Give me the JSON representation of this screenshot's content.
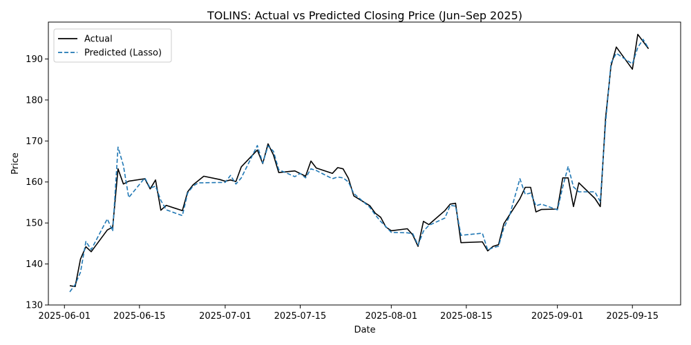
{
  "chart_data": {
    "type": "line",
    "title": "TOLINS: Actual vs Predicted Closing Price (Jun–Sep 2025)",
    "xlabel": "Date",
    "ylabel": "Price",
    "xlim": [
      "2025-05-29",
      "2025-09-24"
    ],
    "ylim": [
      130,
      199
    ],
    "x_ticks": [
      "2025-06-01",
      "2025-06-15",
      "2025-07-01",
      "2025-07-15",
      "2025-08-01",
      "2025-08-15",
      "2025-09-01",
      "2025-09-15"
    ],
    "y_ticks": [
      130,
      140,
      150,
      160,
      170,
      180,
      190
    ],
    "grid": false,
    "legend_position": "top-left",
    "series": [
      {
        "name": "Actual",
        "color": "#000000",
        "style": "solid",
        "points": [
          [
            "2025-06-02",
            134.7
          ],
          [
            "2025-06-03",
            134.5
          ],
          [
            "2025-06-04",
            141.2
          ],
          [
            "2025-06-05",
            144.2
          ],
          [
            "2025-06-06",
            143.0
          ],
          [
            "2025-06-09",
            148.3
          ],
          [
            "2025-06-10",
            149.0
          ],
          [
            "2025-06-11",
            163.2
          ],
          [
            "2025-06-12",
            159.5
          ],
          [
            "2025-06-13",
            160.2
          ],
          [
            "2025-06-16",
            160.8
          ],
          [
            "2025-06-17",
            158.3
          ],
          [
            "2025-06-18",
            160.5
          ],
          [
            "2025-06-19",
            153.1
          ],
          [
            "2025-06-20",
            154.3
          ],
          [
            "2025-06-23",
            153.0
          ],
          [
            "2025-06-24",
            157.6
          ],
          [
            "2025-06-25",
            159.3
          ],
          [
            "2025-06-27",
            161.4
          ],
          [
            "2025-06-30",
            160.6
          ],
          [
            "2025-07-01",
            160.2
          ],
          [
            "2025-07-02",
            160.5
          ],
          [
            "2025-07-03",
            160.1
          ],
          [
            "2025-07-04",
            163.7
          ],
          [
            "2025-07-07",
            167.8
          ],
          [
            "2025-07-08",
            164.5
          ],
          [
            "2025-07-09",
            169.3
          ],
          [
            "2025-07-10",
            166.6
          ],
          [
            "2025-07-11",
            162.3
          ],
          [
            "2025-07-14",
            162.7
          ],
          [
            "2025-07-16",
            161.4
          ],
          [
            "2025-07-17",
            165.1
          ],
          [
            "2025-07-18",
            163.4
          ],
          [
            "2025-07-21",
            162.1
          ],
          [
            "2025-07-22",
            163.5
          ],
          [
            "2025-07-23",
            163.2
          ],
          [
            "2025-07-24",
            160.9
          ],
          [
            "2025-07-25",
            156.6
          ],
          [
            "2025-07-28",
            154.2
          ],
          [
            "2025-07-29",
            152.4
          ],
          [
            "2025-07-30",
            151.4
          ],
          [
            "2025-07-31",
            149.0
          ],
          [
            "2025-08-01",
            148.1
          ],
          [
            "2025-08-04",
            148.6
          ],
          [
            "2025-08-05",
            147.1
          ],
          [
            "2025-08-06",
            144.3
          ],
          [
            "2025-08-07",
            150.4
          ],
          [
            "2025-08-08",
            149.6
          ],
          [
            "2025-08-11",
            153.0
          ],
          [
            "2025-08-12",
            154.6
          ],
          [
            "2025-08-13",
            154.8
          ],
          [
            "2025-08-14",
            145.2
          ],
          [
            "2025-08-18",
            145.4
          ],
          [
            "2025-08-19",
            143.2
          ],
          [
            "2025-08-20",
            144.3
          ],
          [
            "2025-08-21",
            144.7
          ],
          [
            "2025-08-22",
            149.8
          ],
          [
            "2025-08-25",
            155.9
          ],
          [
            "2025-08-26",
            158.7
          ],
          [
            "2025-08-27",
            158.7
          ],
          [
            "2025-08-28",
            152.7
          ],
          [
            "2025-08-29",
            153.3
          ],
          [
            "2025-09-01",
            153.4
          ],
          [
            "2025-09-02",
            161.0
          ],
          [
            "2025-09-03",
            161.0
          ],
          [
            "2025-09-04",
            154.0
          ],
          [
            "2025-09-05",
            159.8
          ],
          [
            "2025-09-08",
            156.0
          ],
          [
            "2025-09-09",
            154.0
          ],
          [
            "2025-09-10",
            175.6
          ],
          [
            "2025-09-11",
            188.3
          ],
          [
            "2025-09-12",
            192.9
          ],
          [
            "2025-09-15",
            187.5
          ],
          [
            "2025-09-16",
            196.0
          ],
          [
            "2025-09-18",
            192.5
          ]
        ]
      },
      {
        "name": "Predicted (Lasso)",
        "color": "#1f77b4",
        "style": "dashed",
        "points": [
          [
            "2025-06-02",
            133.2
          ],
          [
            "2025-06-03",
            135.0
          ],
          [
            "2025-06-04",
            138.0
          ],
          [
            "2025-06-05",
            145.5
          ],
          [
            "2025-06-06",
            143.5
          ],
          [
            "2025-06-09",
            151.0
          ],
          [
            "2025-06-10",
            148.0
          ],
          [
            "2025-06-11",
            168.5
          ],
          [
            "2025-06-12",
            164.0
          ],
          [
            "2025-06-13",
            156.2
          ],
          [
            "2025-06-16",
            161.0
          ],
          [
            "2025-06-17",
            158.5
          ],
          [
            "2025-06-18",
            159.0
          ],
          [
            "2025-06-19",
            155.5
          ],
          [
            "2025-06-20",
            153.2
          ],
          [
            "2025-06-23",
            151.8
          ],
          [
            "2025-06-24",
            157.3
          ],
          [
            "2025-06-25",
            159.0
          ],
          [
            "2025-06-26",
            159.8
          ],
          [
            "2025-06-27",
            159.8
          ],
          [
            "2025-07-01",
            159.9
          ],
          [
            "2025-07-02",
            161.6
          ],
          [
            "2025-07-03",
            159.5
          ],
          [
            "2025-07-04",
            161.0
          ],
          [
            "2025-07-07",
            168.9
          ],
          [
            "2025-07-08",
            164.6
          ],
          [
            "2025-07-09",
            168.8
          ],
          [
            "2025-07-10",
            167.5
          ],
          [
            "2025-07-11",
            163.0
          ],
          [
            "2025-07-14",
            161.3
          ],
          [
            "2025-07-15",
            162.1
          ],
          [
            "2025-07-16",
            161.0
          ],
          [
            "2025-07-17",
            163.2
          ],
          [
            "2025-07-18",
            162.8
          ],
          [
            "2025-07-21",
            160.8
          ],
          [
            "2025-07-22",
            161.2
          ],
          [
            "2025-07-23",
            161.0
          ],
          [
            "2025-07-24",
            160.0
          ],
          [
            "2025-07-25",
            157.2
          ],
          [
            "2025-07-28",
            153.8
          ],
          [
            "2025-07-29",
            152.0
          ],
          [
            "2025-07-30",
            150.4
          ],
          [
            "2025-07-31",
            149.1
          ],
          [
            "2025-08-01",
            147.7
          ],
          [
            "2025-08-04",
            147.6
          ],
          [
            "2025-08-05",
            147.4
          ],
          [
            "2025-08-06",
            144.6
          ],
          [
            "2025-08-07",
            148.0
          ],
          [
            "2025-08-08",
            149.4
          ],
          [
            "2025-08-11",
            151.2
          ],
          [
            "2025-08-12",
            154.3
          ],
          [
            "2025-08-13",
            154.1
          ],
          [
            "2025-08-14",
            147.0
          ],
          [
            "2025-08-18",
            147.5
          ],
          [
            "2025-08-19",
            143.4
          ],
          [
            "2025-08-20",
            144.0
          ],
          [
            "2025-08-21",
            144.3
          ],
          [
            "2025-08-22",
            148.8
          ],
          [
            "2025-08-23",
            151.5
          ],
          [
            "2025-08-25",
            160.8
          ],
          [
            "2025-08-26",
            157.0
          ],
          [
            "2025-08-27",
            157.3
          ],
          [
            "2025-08-28",
            154.2
          ],
          [
            "2025-08-29",
            154.6
          ],
          [
            "2025-09-01",
            153.2
          ],
          [
            "2025-09-02",
            158.8
          ],
          [
            "2025-09-03",
            163.8
          ],
          [
            "2025-09-04",
            158.8
          ],
          [
            "2025-09-05",
            157.6
          ],
          [
            "2025-09-08",
            157.6
          ],
          [
            "2025-09-09",
            155.2
          ],
          [
            "2025-09-10",
            174.4
          ],
          [
            "2025-09-11",
            189.0
          ],
          [
            "2025-09-12",
            191.4
          ],
          [
            "2025-09-15",
            188.8
          ],
          [
            "2025-09-16",
            192.8
          ],
          [
            "2025-09-17",
            194.8
          ],
          [
            "2025-09-18",
            192.6
          ]
        ]
      }
    ]
  }
}
